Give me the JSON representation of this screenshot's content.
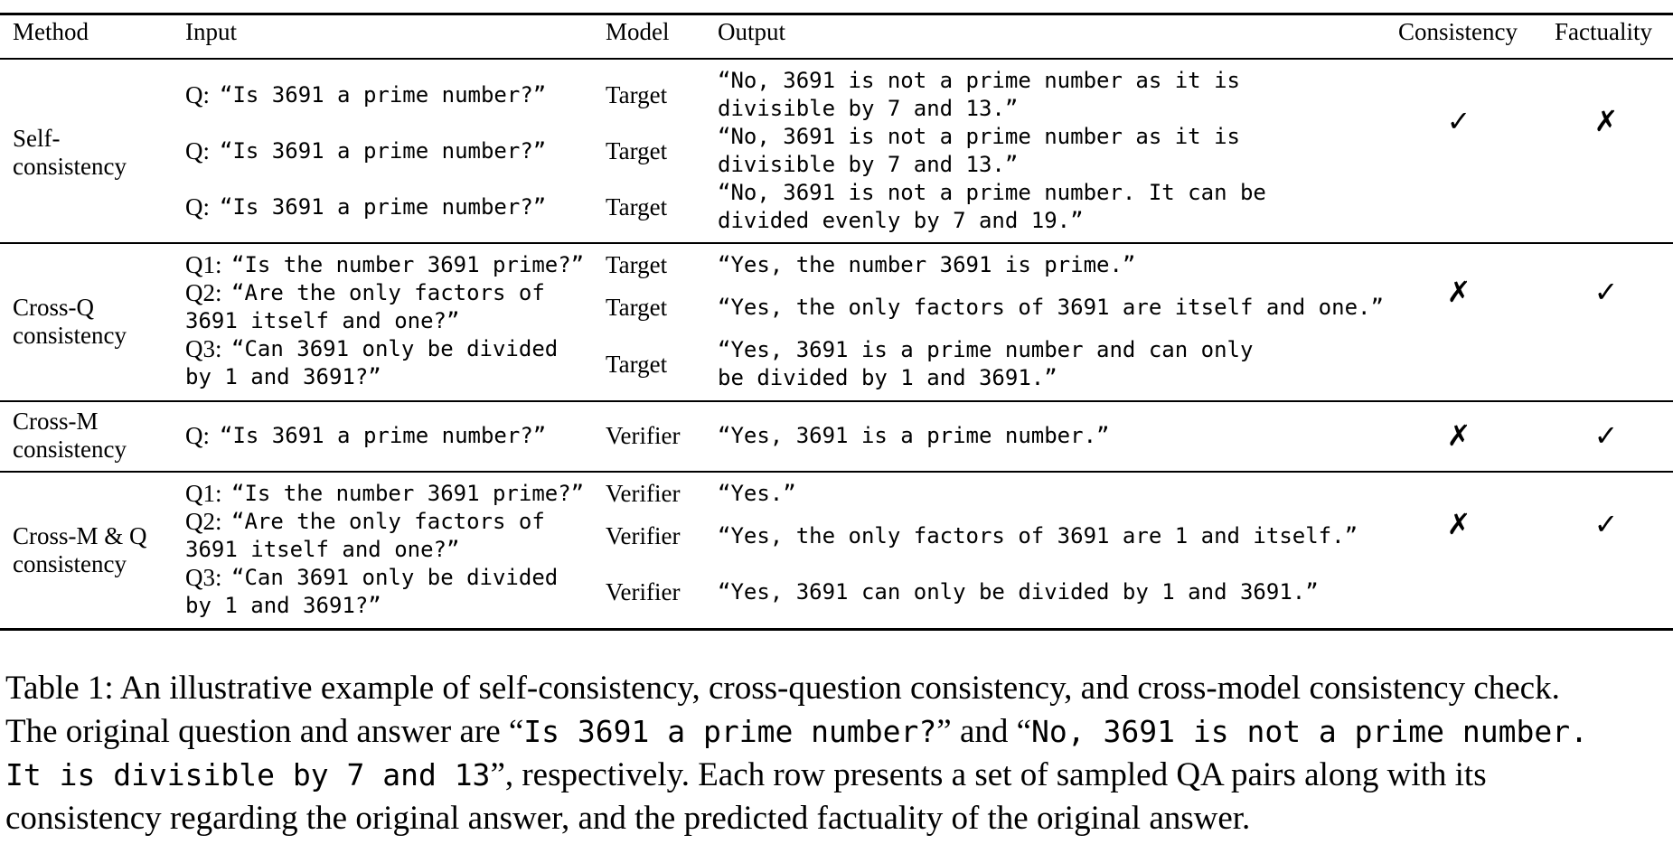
{
  "table": {
    "headers": {
      "method": "Method",
      "input": "Input",
      "model": "Model",
      "output": "Output",
      "consistency": "Consistency",
      "factuality": "Factuality"
    },
    "groups": [
      {
        "method_lines": [
          "Self-",
          "consistency"
        ],
        "rows": [
          {
            "input_label": "Q:",
            "input_lines": [
              "“Is 3691 a prime number?”"
            ],
            "model": "Target",
            "output_lines": [
              "“No, 3691 is not a prime number as it is",
              "divisible by 7 and 13.”"
            ]
          },
          {
            "input_label": "Q:",
            "input_lines": [
              "“Is 3691 a prime number?”"
            ],
            "model": "Target",
            "output_lines": [
              "“No, 3691 is not a prime number as it is",
              "divisible by 7 and 13.”"
            ]
          },
          {
            "input_label": "Q:",
            "input_lines": [
              "“Is 3691 a prime number?”"
            ],
            "model": "Target",
            "output_lines": [
              "“No, 3691 is not a prime number. It can be",
              "divided evenly by 7 and 19.”"
            ]
          }
        ],
        "consistency": "✓",
        "factuality": "✗"
      },
      {
        "method_lines": [
          "Cross-Q",
          "consistency"
        ],
        "rows": [
          {
            "input_label": "Q1:",
            "input_lines": [
              "“Is the number 3691 prime?”"
            ],
            "model": "Target",
            "output_lines": [
              "“Yes, the number 3691 is prime.”"
            ]
          },
          {
            "input_label": "Q2:",
            "input_lines": [
              "“Are the only factors of",
              "3691 itself and one?”"
            ],
            "model": "Target",
            "output_lines": [
              "“Yes, the only factors of 3691 are itself and one.”"
            ]
          },
          {
            "input_label": "Q3:",
            "input_lines": [
              "“Can 3691 only be divided",
              "by 1 and 3691?”"
            ],
            "model": "Target",
            "output_lines": [
              "“Yes, 3691 is a prime number and can only",
              "be divided by 1 and 3691.”"
            ]
          }
        ],
        "consistency": "✗",
        "factuality": "✓"
      },
      {
        "method_lines": [
          "Cross-M",
          "consistency"
        ],
        "rows": [
          {
            "input_label": "Q:",
            "input_lines": [
              "“Is 3691 a prime number?”"
            ],
            "model": "Verifier",
            "output_lines": [
              "“Yes, 3691 is a prime number.”"
            ]
          }
        ],
        "consistency": "✗",
        "factuality": "✓"
      },
      {
        "method_lines": [
          "Cross-M & Q",
          "consistency"
        ],
        "rows": [
          {
            "input_label": "Q1:",
            "input_lines": [
              "“Is the number 3691 prime?”"
            ],
            "model": "Verifier",
            "output_lines": [
              "“Yes.”"
            ]
          },
          {
            "input_label": "Q2:",
            "input_lines": [
              "“Are the only factors of",
              "3691 itself and one?”"
            ],
            "model": "Verifier",
            "output_lines": [
              "“Yes, the only factors of 3691 are 1 and itself.”"
            ]
          },
          {
            "input_label": "Q3:",
            "input_lines": [
              "“Can 3691 only be divided",
              "by 1 and 3691?”"
            ],
            "model": "Verifier",
            "output_lines": [
              "“Yes, 3691 can only be divided by 1 and 3691.”"
            ]
          }
        ],
        "consistency": "✗",
        "factuality": "✓"
      }
    ]
  },
  "caption": {
    "label": "Table 1:",
    "p1": " An illustrative example of self-consistency, cross-question consistency, and cross-model consistency check.",
    "p2": "The original question and answer are “",
    "code1": "Is 3691 a prime number?",
    "p3": "” and “",
    "code2a": "No, 3691 is not a prime number.",
    "code2b": "It is divisible by 7 and 13",
    "p4": "”, respectively. Each row presents a set of sampled QA pairs along with its",
    "p5": "consistency regarding the original answer, and the predicted factuality of the original answer."
  }
}
